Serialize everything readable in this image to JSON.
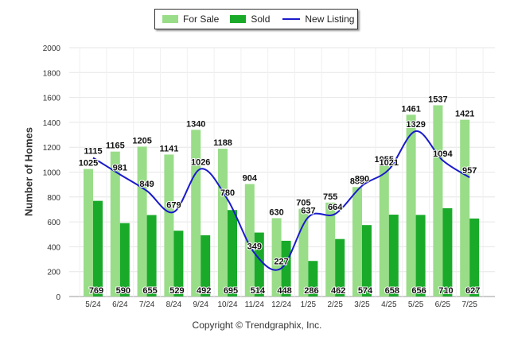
{
  "chart_data": {
    "type": "bar",
    "categories": [
      "5/24",
      "6/24",
      "7/24",
      "8/24",
      "9/24",
      "10/24",
      "11/24",
      "12/24",
      "1/25",
      "2/25",
      "3/25",
      "4/25",
      "5/25",
      "6/25",
      "7/25"
    ],
    "series": [
      {
        "name": "For Sale",
        "kind": "bar",
        "color": "#99dd88",
        "values": [
          1025,
          1165,
          1205,
          1141,
          1340,
          1188,
          904,
          630,
          705,
          755,
          880,
          1055,
          1461,
          1537,
          1421
        ]
      },
      {
        "name": "Sold",
        "kind": "bar",
        "color": "#1aaa2a",
        "values": [
          769,
          590,
          655,
          529,
          492,
          695,
          514,
          448,
          286,
          462,
          574,
          658,
          656,
          710,
          627
        ]
      },
      {
        "name": "New Listing",
        "kind": "line",
        "color": "#1a1acc",
        "values": [
          1115,
          981,
          849,
          679,
          1026,
          780,
          349,
          227,
          637,
          664,
          890,
          1021,
          1329,
          1094,
          957
        ]
      }
    ],
    "ylabel": "Number of Homes",
    "ylim": [
      0,
      2000
    ],
    "yticks": [
      0,
      200,
      400,
      600,
      800,
      1000,
      1200,
      1400,
      1600,
      1800,
      2000
    ],
    "grid": true,
    "legend": "top-center"
  },
  "footer": "Copyright © Trendgraphix, Inc."
}
